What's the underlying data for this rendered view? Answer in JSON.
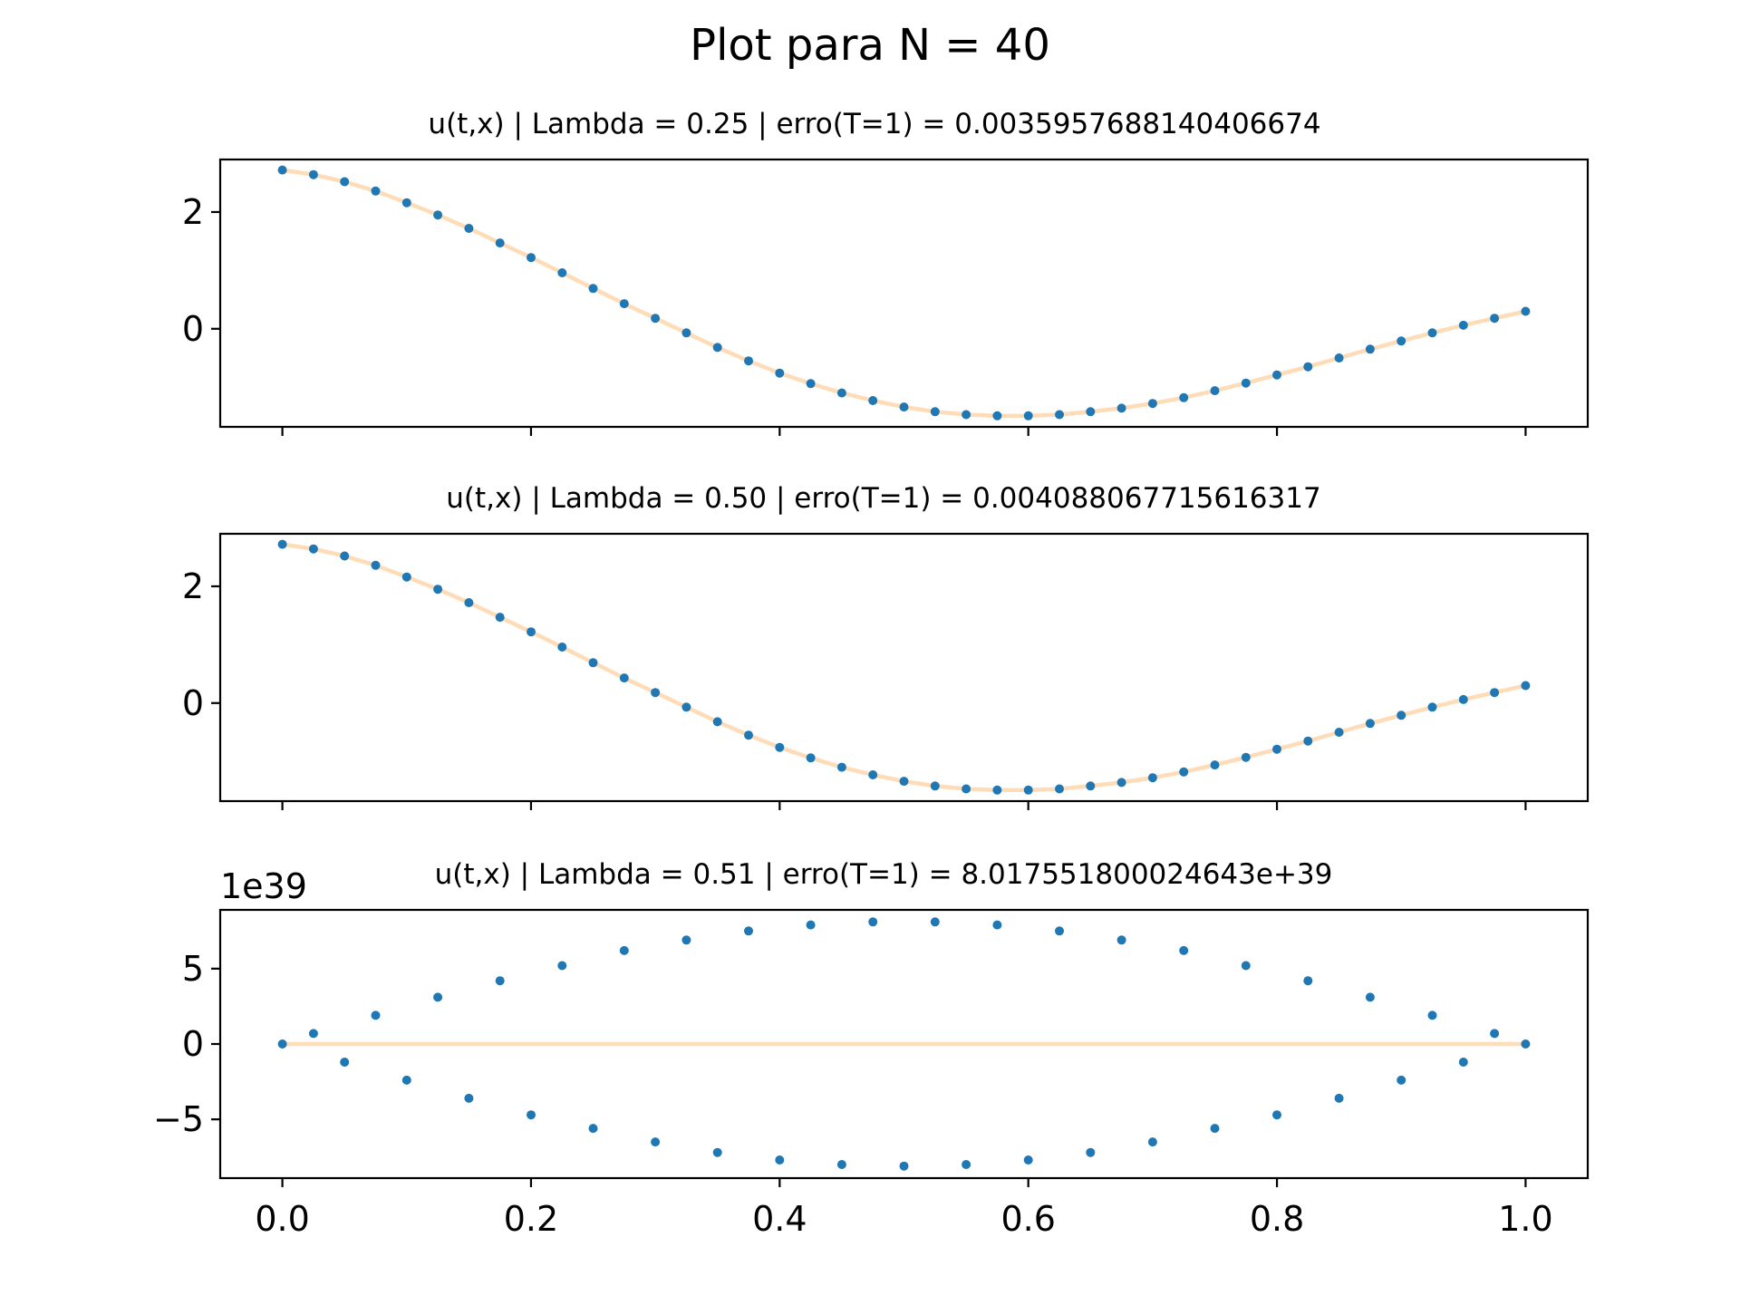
{
  "figure": {
    "suptitle": "Plot para N = 40"
  },
  "colors": {
    "numeric_points": "#1f77b4",
    "exact_line": "#ffdcb8",
    "axes": "#000000"
  },
  "chart_data": [
    {
      "type": "scatter",
      "title": "u(t,x) | Lambda = 0.25 | erro(T=1) = 0.0035957688140406674",
      "xlabel": "",
      "ylabel": "",
      "xlim": [
        -0.05,
        1.05
      ],
      "ylim": [
        -1.68,
        2.9
      ],
      "x_ticks": [
        0,
        0.2,
        0.4,
        0.6,
        0.8,
        1.0
      ],
      "x_tick_labels": [],
      "y_ticks": [
        0,
        2
      ],
      "y_tick_labels": [
        "0",
        "2"
      ],
      "y_offset_label": "",
      "series": [
        {
          "kind": "points",
          "color": "#1f77b4",
          "x": [
            0,
            0.025,
            0.05,
            0.075,
            0.1,
            0.125,
            0.15,
            0.175,
            0.2,
            0.225,
            0.25,
            0.275,
            0.3,
            0.325,
            0.35,
            0.375,
            0.4,
            0.425,
            0.45,
            0.475,
            0.5,
            0.525,
            0.55,
            0.575,
            0.6,
            0.625,
            0.65,
            0.675,
            0.7,
            0.725,
            0.75,
            0.775,
            0.8,
            0.825,
            0.85,
            0.875,
            0.9,
            0.925,
            0.95,
            0.975,
            1.0
          ],
          "y": [
            2.72,
            2.64,
            2.52,
            2.36,
            2.16,
            1.95,
            1.72,
            1.47,
            1.22,
            0.96,
            0.69,
            0.43,
            0.18,
            -0.07,
            -0.32,
            -0.55,
            -0.76,
            -0.94,
            -1.1,
            -1.23,
            -1.34,
            -1.42,
            -1.47,
            -1.49,
            -1.49,
            -1.47,
            -1.42,
            -1.36,
            -1.28,
            -1.18,
            -1.06,
            -0.93,
            -0.79,
            -0.65,
            -0.5,
            -0.35,
            -0.21,
            -0.07,
            0.06,
            0.18,
            0.3
          ]
        },
        {
          "kind": "line",
          "color": "#ffdcb8",
          "x": [
            0,
            0.025,
            0.05,
            0.075,
            0.1,
            0.125,
            0.15,
            0.175,
            0.2,
            0.225,
            0.25,
            0.275,
            0.3,
            0.325,
            0.35,
            0.375,
            0.4,
            0.425,
            0.45,
            0.475,
            0.5,
            0.525,
            0.55,
            0.575,
            0.6,
            0.625,
            0.65,
            0.675,
            0.7,
            0.725,
            0.75,
            0.775,
            0.8,
            0.825,
            0.85,
            0.875,
            0.9,
            0.925,
            0.95,
            0.975,
            1.0
          ],
          "y": [
            2.72,
            2.64,
            2.52,
            2.36,
            2.16,
            1.95,
            1.72,
            1.47,
            1.22,
            0.96,
            0.69,
            0.43,
            0.18,
            -0.07,
            -0.32,
            -0.55,
            -0.76,
            -0.94,
            -1.1,
            -1.23,
            -1.34,
            -1.42,
            -1.47,
            -1.49,
            -1.49,
            -1.47,
            -1.42,
            -1.36,
            -1.28,
            -1.18,
            -1.06,
            -0.93,
            -0.79,
            -0.65,
            -0.5,
            -0.35,
            -0.21,
            -0.07,
            0.06,
            0.18,
            0.3
          ]
        }
      ]
    },
    {
      "type": "scatter",
      "title": "u(t,x) | Lambda = 0.50 | erro(T=1) = 0.004088067715616317",
      "xlabel": "",
      "ylabel": "",
      "xlim": [
        -0.05,
        1.05
      ],
      "ylim": [
        -1.68,
        2.9
      ],
      "x_ticks": [
        0,
        0.2,
        0.4,
        0.6,
        0.8,
        1.0
      ],
      "x_tick_labels": [],
      "y_ticks": [
        0,
        2
      ],
      "y_tick_labels": [
        "0",
        "2"
      ],
      "y_offset_label": "",
      "series": [
        {
          "kind": "points",
          "color": "#1f77b4",
          "x": [
            0,
            0.025,
            0.05,
            0.075,
            0.1,
            0.125,
            0.15,
            0.175,
            0.2,
            0.225,
            0.25,
            0.275,
            0.3,
            0.325,
            0.35,
            0.375,
            0.4,
            0.425,
            0.45,
            0.475,
            0.5,
            0.525,
            0.55,
            0.575,
            0.6,
            0.625,
            0.65,
            0.675,
            0.7,
            0.725,
            0.75,
            0.775,
            0.8,
            0.825,
            0.85,
            0.875,
            0.9,
            0.925,
            0.95,
            0.975,
            1.0
          ],
          "y": [
            2.72,
            2.64,
            2.52,
            2.36,
            2.16,
            1.95,
            1.72,
            1.47,
            1.22,
            0.96,
            0.69,
            0.43,
            0.18,
            -0.07,
            -0.32,
            -0.55,
            -0.76,
            -0.94,
            -1.1,
            -1.23,
            -1.34,
            -1.42,
            -1.47,
            -1.49,
            -1.49,
            -1.47,
            -1.42,
            -1.36,
            -1.28,
            -1.18,
            -1.06,
            -0.93,
            -0.79,
            -0.65,
            -0.5,
            -0.35,
            -0.21,
            -0.07,
            0.06,
            0.18,
            0.3
          ]
        },
        {
          "kind": "line",
          "color": "#ffdcb8",
          "x": [
            0,
            0.025,
            0.05,
            0.075,
            0.1,
            0.125,
            0.15,
            0.175,
            0.2,
            0.225,
            0.25,
            0.275,
            0.3,
            0.325,
            0.35,
            0.375,
            0.4,
            0.425,
            0.45,
            0.475,
            0.5,
            0.525,
            0.55,
            0.575,
            0.6,
            0.625,
            0.65,
            0.675,
            0.7,
            0.725,
            0.75,
            0.775,
            0.8,
            0.825,
            0.85,
            0.875,
            0.9,
            0.925,
            0.95,
            0.975,
            1.0
          ],
          "y": [
            2.72,
            2.64,
            2.52,
            2.36,
            2.16,
            1.95,
            1.72,
            1.47,
            1.22,
            0.96,
            0.69,
            0.43,
            0.18,
            -0.07,
            -0.32,
            -0.55,
            -0.76,
            -0.94,
            -1.1,
            -1.23,
            -1.34,
            -1.42,
            -1.47,
            -1.49,
            -1.49,
            -1.47,
            -1.42,
            -1.36,
            -1.28,
            -1.18,
            -1.06,
            -0.93,
            -0.79,
            -0.65,
            -0.5,
            -0.35,
            -0.21,
            -0.07,
            0.06,
            0.18,
            0.3
          ]
        }
      ]
    },
    {
      "type": "scatter",
      "title": "u(t,x) | Lambda = 0.51 | erro(T=1) = 8.017551800024643e+39",
      "xlabel": "",
      "ylabel": "",
      "xlim": [
        -0.05,
        1.05
      ],
      "ylim": [
        -8.9,
        8.9
      ],
      "x_ticks": [
        0,
        0.2,
        0.4,
        0.6,
        0.8,
        1.0
      ],
      "x_tick_labels": [
        "0.0",
        "0.2",
        "0.4",
        "0.6",
        "0.8",
        "1.0"
      ],
      "y_ticks": [
        -5,
        0,
        5
      ],
      "y_tick_labels": [
        "−5",
        "0",
        "5"
      ],
      "y_offset_label": "1e39",
      "series": [
        {
          "kind": "points",
          "color": "#1f77b4",
          "x": [
            0,
            0.025,
            0.05,
            0.075,
            0.1,
            0.125,
            0.15,
            0.175,
            0.2,
            0.225,
            0.25,
            0.275,
            0.3,
            0.325,
            0.35,
            0.375,
            0.4,
            0.425,
            0.45,
            0.475,
            0.5,
            0.525,
            0.55,
            0.575,
            0.6,
            0.625,
            0.65,
            0.675,
            0.7,
            0.725,
            0.75,
            0.775,
            0.8,
            0.825,
            0.85,
            0.875,
            0.9,
            0.925,
            0.95,
            0.975,
            1.0
          ],
          "y": [
            0,
            0.7,
            -1.2,
            1.9,
            -2.4,
            3.1,
            -3.6,
            4.2,
            -4.7,
            5.2,
            -5.6,
            6.2,
            -6.5,
            6.9,
            -7.2,
            7.5,
            -7.7,
            7.9,
            -8.0,
            8.1,
            -8.1,
            8.1,
            -8.0,
            7.9,
            -7.7,
            7.5,
            -7.2,
            6.9,
            -6.5,
            6.2,
            -5.6,
            5.2,
            -4.7,
            4.2,
            -3.6,
            3.1,
            -2.4,
            1.9,
            -1.2,
            0.7,
            0
          ]
        },
        {
          "kind": "line",
          "color": "#ffdcb8",
          "x": [
            0,
            1.0
          ],
          "y": [
            0,
            0
          ]
        }
      ]
    }
  ]
}
